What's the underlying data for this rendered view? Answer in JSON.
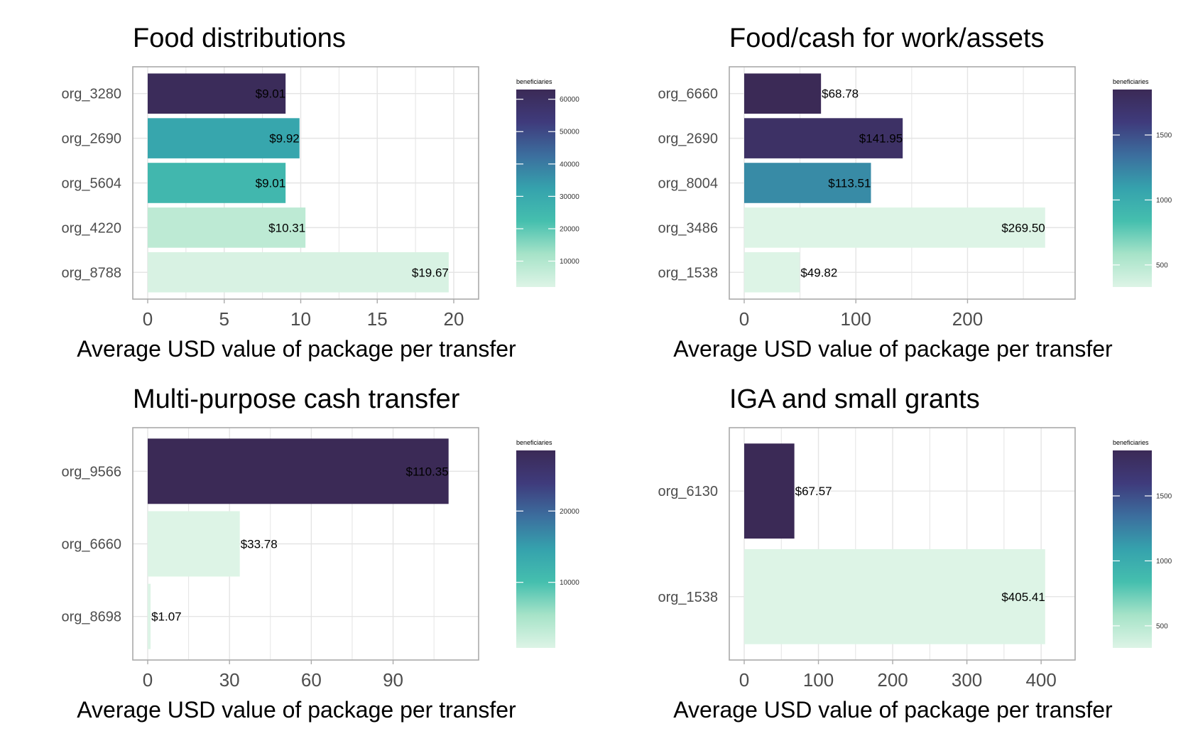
{
  "colors": {
    "scale": [
      "#3b2a56",
      "#3f3b7c",
      "#3c6e9e",
      "#35a2ad",
      "#45bfae",
      "#a6e3c8",
      "#ddf4e6"
    ],
    "panel_border": "#aaaaaa",
    "grid": "#e4e4e4",
    "axis_text": "#4d4d4d"
  },
  "chart_data": [
    {
      "type": "bar",
      "title": "Food distributions",
      "xlabel": "Average USD value of package per transfer",
      "ylabel": "",
      "orientation": "horizontal",
      "categories": [
        "org_3280",
        "org_2690",
        "org_5604",
        "org_4220",
        "org_8788"
      ],
      "values": [
        9.01,
        9.92,
        9.01,
        10.31,
        19.67
      ],
      "labels": [
        "$9.01",
        "$9.92",
        "$9.01",
        "$10.31",
        "$19.67"
      ],
      "beneficiaries": [
        62000,
        31000,
        25000,
        8000,
        3000
      ],
      "xlim": [
        0,
        20.65
      ],
      "xticks": [
        0,
        5,
        10,
        15,
        20
      ],
      "xminor": [
        2.5,
        7.5,
        12.5,
        17.5
      ],
      "legend": {
        "title": "beneficiaries",
        "min": 2000,
        "max": 63000,
        "ticks": [
          10000,
          20000,
          30000,
          40000,
          50000,
          60000
        ],
        "tick_labels": [
          "10000",
          "20000",
          "30000",
          "40000",
          "50000",
          "60000"
        ]
      }
    },
    {
      "type": "bar",
      "title": "Food/cash for work/assets",
      "xlabel": "Average USD value of package per transfer",
      "ylabel": "",
      "orientation": "horizontal",
      "categories": [
        "org_6660",
        "org_2690",
        "org_8004",
        "org_3486",
        "org_1538"
      ],
      "values": [
        68.78,
        141.95,
        113.51,
        269.5,
        49.82
      ],
      "labels": [
        "$68.78",
        "$141.95",
        "$113.51",
        "$269.50",
        "$49.82"
      ],
      "beneficiaries": [
        1850,
        1750,
        1200,
        330,
        330
      ],
      "xlim": [
        0,
        283
      ],
      "xticks": [
        0,
        100,
        200
      ],
      "xminor": [
        50,
        150,
        250
      ],
      "legend": {
        "title": "beneficiaries",
        "min": 330,
        "max": 1850,
        "ticks": [
          500,
          1000,
          1500
        ],
        "tick_labels": [
          "500",
          "1000",
          "1500"
        ]
      }
    },
    {
      "type": "bar",
      "title": "Multi-purpose cash transfer",
      "xlabel": "Average USD value of package per transfer",
      "ylabel": "",
      "orientation": "horizontal",
      "categories": [
        "org_9566",
        "org_6660",
        "org_8698"
      ],
      "values": [
        110.35,
        33.78,
        1.07
      ],
      "labels": [
        "$110.35",
        "$33.78",
        "$1.07"
      ],
      "beneficiaries": [
        28500,
        800,
        800
      ],
      "xlim": [
        0,
        115.9
      ],
      "xticks": [
        0,
        30,
        60,
        90
      ],
      "xminor": [
        15,
        45,
        75,
        105
      ],
      "legend": {
        "title": "beneficiaries",
        "min": 800,
        "max": 28500,
        "ticks": [
          10000,
          20000
        ],
        "tick_labels": [
          "10000",
          "20000"
        ]
      }
    },
    {
      "type": "bar",
      "title": "IGA and small grants",
      "xlabel": "Average USD value of package per transfer",
      "ylabel": "",
      "orientation": "horizontal",
      "categories": [
        "org_6130",
        "org_1538"
      ],
      "values": [
        67.57,
        405.41
      ],
      "labels": [
        "$67.57",
        "$405.41"
      ],
      "beneficiaries": [
        1850,
        330
      ],
      "xlim": [
        0,
        425.7
      ],
      "xticks": [
        0,
        100,
        200,
        300,
        400
      ],
      "xminor": [
        50,
        150,
        250,
        350
      ],
      "legend": {
        "title": "beneficiaries",
        "min": 330,
        "max": 1850,
        "ticks": [
          500,
          1000,
          1500
        ],
        "tick_labels": [
          "500",
          "1000",
          "1500"
        ]
      }
    }
  ]
}
